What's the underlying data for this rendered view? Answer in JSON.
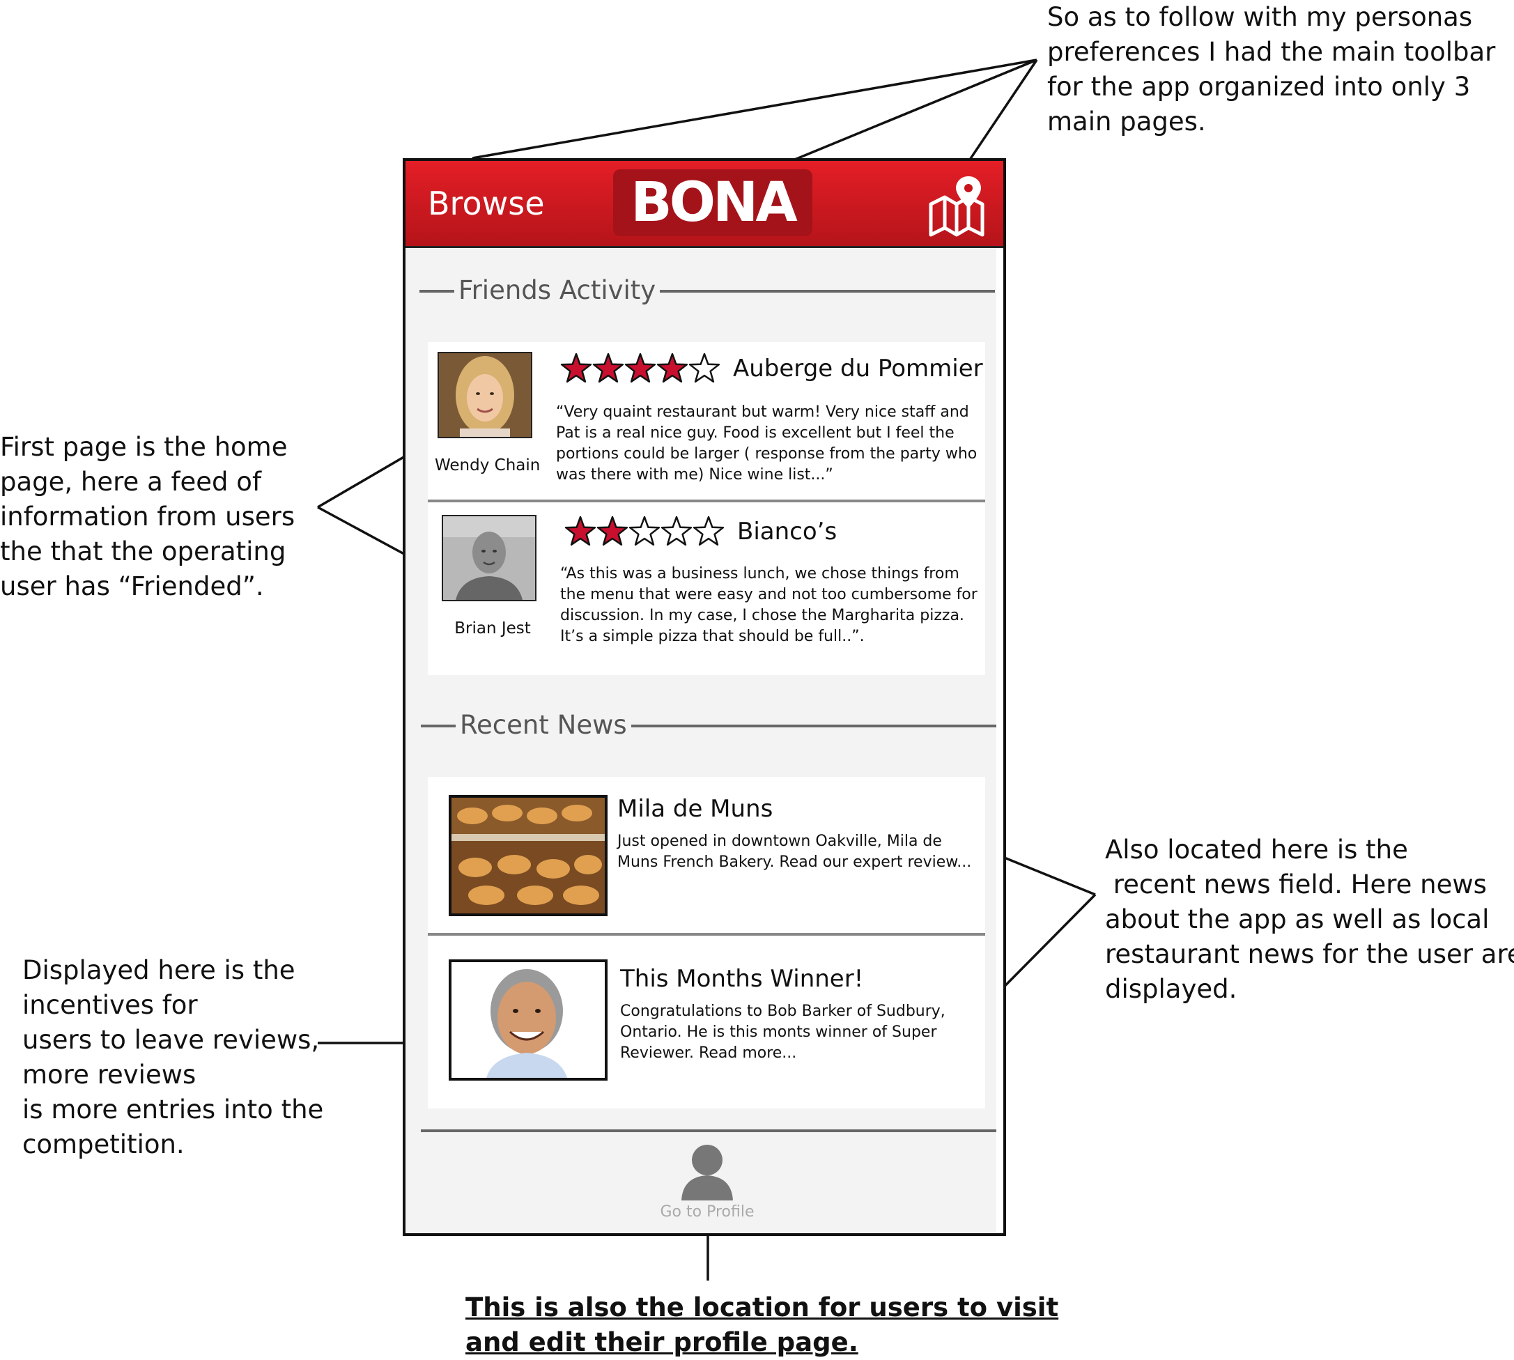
{
  "annotations": {
    "toolbar_note": [
      "So as to follow with my personas",
      "preferences I had the main toolbar",
      "for the app organized into only 3",
      "main pages."
    ],
    "feed_note": [
      "First page is the home",
      "page, here a feed of",
      "information from users",
      "the that the operating",
      "user has “Friended”."
    ],
    "incentives_note": [
      "Displayed here is the",
      "incentives for",
      "users to leave reviews,",
      "more reviews",
      "is more entries into the",
      "competition."
    ],
    "news_note": [
      "Also located here is the",
      " recent news field. Here news",
      "about the app as well as local",
      "restaurant news for the user are",
      "displayed."
    ],
    "profile_note": [
      "This is also the location for users to visit",
      "and edit their profile page."
    ]
  },
  "toolbar": {
    "browse_label": "Browse",
    "logo_text": "BONA",
    "map_icon": "map-pin-icon"
  },
  "friends_activity": {
    "title": "Friends Activity",
    "items": [
      {
        "name": "Wendy Chain",
        "rating": 4,
        "max_rating": 5,
        "restaurant": "Auberge du Pommier",
        "review_lines": [
          "“Very quaint restaurant but warm! Very nice staff and",
          "Pat is a real nice guy. Food is excellent but I feel the",
          "portions could be larger ( response from the party who",
          "was there with me) Nice wine list...”"
        ]
      },
      {
        "name": "Brian Jest",
        "rating": 2,
        "max_rating": 5,
        "restaurant": "Bianco’s",
        "review_lines": [
          "“As this was a business lunch, we chose things from",
          "the menu that were easy and not too cumbersome for",
          "discussion. In my case, I chose the Margharita pizza.",
          "It’s a simple pizza that should be full..”."
        ]
      }
    ]
  },
  "recent_news": {
    "title": "Recent News",
    "items": [
      {
        "title": "Mila de Muns",
        "text_lines": [
          "Just opened in downtown Oakville, Mila de",
          "Muns French Bakery. Read our expert review..."
        ]
      },
      {
        "title": "This Months Winner!",
        "text_lines": [
          "Congratulations to Bob Barker of Sudbury,",
          "Ontario. He is this monts winner of Super",
          "Reviewer. Read more..."
        ]
      }
    ]
  },
  "profile": {
    "label": "Go to Profile",
    "icon": "person-icon"
  },
  "colors": {
    "toolbar_red": "#d71920",
    "star_red": "#c8102e",
    "background": "#f3f3f3"
  }
}
